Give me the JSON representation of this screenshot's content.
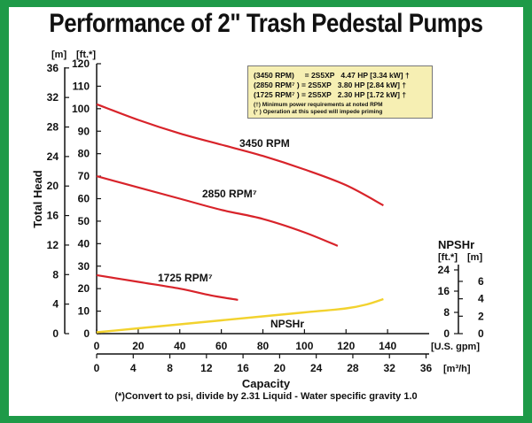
{
  "title": "Performance of 2\" Trash Pedestal Pumps",
  "legend_box": {
    "lines": [
      "(3450 RPM)     = 2S5XP   4.47 HP [3.34 kW] †",
      "(2850 RPM⁷ ) = 2S5XP   3.80 HP [2.84 kW] †",
      "(1725 RPM⁷ ) = 2S5XP   2.30 HP [1.72 kW] †"
    ],
    "notes": [
      "(†) Minimum power requirements at noted RPM",
      "(⁷ ) Operation at this speed will impede priming"
    ]
  },
  "footnote": "(*)Convert to psi, divide by 2.31     Liquid - Water specific gravity 1.0",
  "colors": {
    "border": "#1e9a48",
    "head_curve": "#d8232a",
    "npshr_curve": "#f2d22e",
    "legend_bg": "#f6efb3"
  },
  "chart_data": {
    "type": "line",
    "xlabel": "Capacity",
    "ylabel": "Total Head",
    "x_unit_primary": "[U.S. gpm]",
    "x_unit_secondary": "[m³/h]",
    "y_unit_left_m": "[m]",
    "y_unit_left_ft": "[ft.*]",
    "xlim": [
      0,
      160
    ],
    "ylim_ft": [
      0,
      120
    ],
    "x_ticks_gpm": [
      "0",
      "20",
      "40",
      "60",
      "80",
      "100",
      "120",
      "140"
    ],
    "x_ticks_m3h": [
      "0",
      "4",
      "8",
      "12",
      "16",
      "20",
      "24",
      "28",
      "32",
      "36"
    ],
    "y_ticks_ft": [
      "0",
      "10",
      "20",
      "30",
      "40",
      "50",
      "60",
      "70",
      "80",
      "90",
      "100",
      "110",
      "120"
    ],
    "y_ticks_m": [
      "0",
      "4",
      "8",
      "12",
      "16",
      "20",
      "24",
      "28",
      "32",
      "36"
    ],
    "npshr_axis": {
      "title": "NPSHr",
      "unit_ft": "[ft.*]",
      "unit_m": "[m]",
      "ticks_ft": [
        "0",
        "8",
        "16",
        "24"
      ],
      "ticks_m": [
        "0",
        "2",
        "4",
        "6"
      ]
    },
    "series": [
      {
        "name": "3450 RPM",
        "x": [
          0,
          20,
          40,
          60,
          80,
          100,
          120,
          138
        ],
        "y": [
          102,
          95,
          89,
          84,
          79,
          73,
          66,
          57
        ]
      },
      {
        "name": "2850 RPM⁷",
        "x": [
          0,
          20,
          40,
          60,
          80,
          100,
          116
        ],
        "y": [
          70,
          65,
          60,
          55,
          51,
          45,
          39
        ]
      },
      {
        "name": "1725 RPM⁷",
        "x": [
          0,
          20,
          40,
          55,
          68
        ],
        "y": [
          26,
          23,
          20,
          17,
          15
        ]
      }
    ],
    "npshr_series": {
      "name": "NPSHr",
      "x": [
        0,
        20,
        40,
        60,
        80,
        100,
        120,
        130,
        138
      ],
      "y_ft": [
        0.5,
        2.0,
        3.5,
        5.0,
        6.5,
        8.0,
        9.5,
        11.0,
        13.0
      ]
    }
  }
}
